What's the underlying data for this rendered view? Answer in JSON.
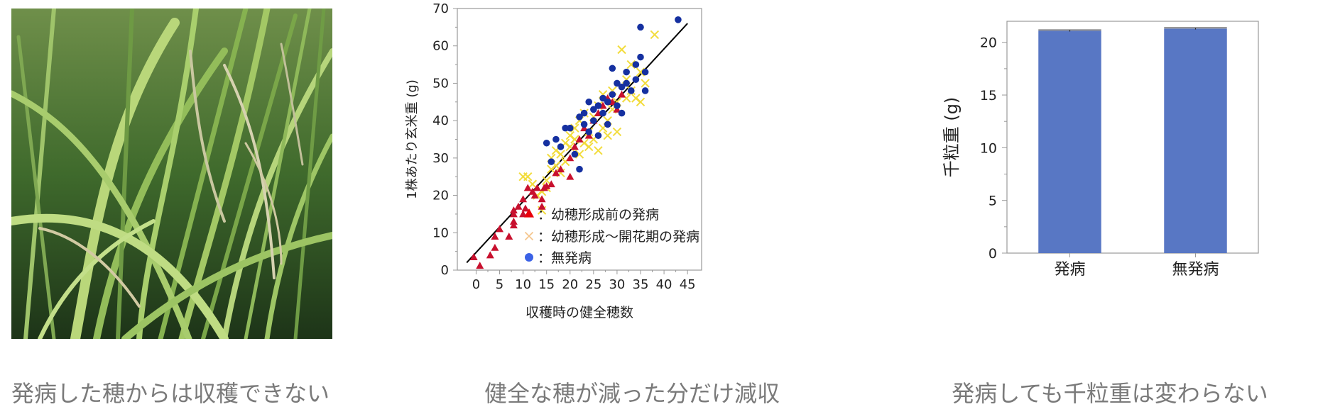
{
  "captions": {
    "photo": "発病した穂からは収穫できない",
    "scatter": "健全な穂が減った分だけ減収",
    "bar": "発病しても千粒重は変わらない"
  },
  "colors": {
    "triangle": "#c8102e",
    "cross": "#f2dc3c",
    "circle": "#1530a0",
    "bar": "#5877c4",
    "fit_line": "#000000"
  },
  "chart_data": [
    {
      "type": "scatter",
      "title": "",
      "xlabel": "収穫時の健全穂数",
      "ylabel": "1株あたり玄米重 (g)",
      "xlim": [
        -4,
        48
      ],
      "ylim": [
        0,
        70
      ],
      "xticks": [
        "0",
        "5",
        "10",
        "15",
        "20",
        "25",
        "30",
        "35",
        "40",
        "45"
      ],
      "yticks": [
        "0",
        "10",
        "20",
        "30",
        "40",
        "50",
        "60",
        "70"
      ],
      "grid": false,
      "legend_position": "bottom-right",
      "legend": [
        {
          "marker": "triangle",
          "label": "：幼穂形成前の発病"
        },
        {
          "marker": "cross",
          "label": "：幼穂形成〜開花期の発病"
        },
        {
          "marker": "circle",
          "label": "：無発病"
        }
      ],
      "fit_line": {
        "x": [
          -2,
          45
        ],
        "y": [
          2,
          66
        ]
      },
      "series": [
        {
          "marker": "triangle",
          "points": [
            [
              -0.5,
              3.5
            ],
            [
              0.8,
              1.2
            ],
            [
              3,
              4
            ],
            [
              4,
              6
            ],
            [
              4,
              9
            ],
            [
              5,
              11
            ],
            [
              7,
              9
            ],
            [
              8,
              12
            ],
            [
              8,
              13
            ],
            [
              8,
              15
            ],
            [
              8,
              16
            ],
            [
              9,
              17
            ],
            [
              10,
              15
            ],
            [
              10,
              19
            ],
            [
              10.5,
              16.5
            ],
            [
              11,
              22
            ],
            [
              12,
              21
            ],
            [
              12.5,
              20
            ],
            [
              13,
              22
            ],
            [
              14,
              17
            ],
            [
              14,
              19
            ],
            [
              14.5,
              22
            ],
            [
              15,
              22.5
            ],
            [
              16,
              23
            ],
            [
              17,
              26
            ],
            [
              18,
              27
            ],
            [
              20,
              25
            ],
            [
              20,
              30
            ],
            [
              21,
              33
            ],
            [
              22,
              35
            ],
            [
              23,
              38
            ],
            [
              24,
              36
            ],
            [
              25,
              40
            ],
            [
              26,
              42
            ],
            [
              27,
              44
            ],
            [
              28,
              46
            ],
            [
              29,
              45
            ],
            [
              30,
              43
            ],
            [
              31,
              47
            ]
          ]
        },
        {
          "marker": "cross",
          "points": [
            [
              10,
              25
            ],
            [
              11,
              25
            ],
            [
              12,
              23
            ],
            [
              13,
              20
            ],
            [
              14,
              21
            ],
            [
              14,
              16
            ],
            [
              15,
              24
            ],
            [
              15,
              22
            ],
            [
              16,
              27
            ],
            [
              16,
              30
            ],
            [
              17,
              28
            ],
            [
              17,
              32
            ],
            [
              18,
              26
            ],
            [
              18,
              31
            ],
            [
              19,
              29
            ],
            [
              19,
              34
            ],
            [
              20,
              33
            ],
            [
              20,
              36
            ],
            [
              21,
              35
            ],
            [
              21,
              38
            ],
            [
              22,
              31
            ],
            [
              22,
              40
            ],
            [
              23,
              34
            ],
            [
              23,
              42
            ],
            [
              24,
              33
            ],
            [
              24,
              37
            ],
            [
              25,
              41
            ],
            [
              25,
              35
            ],
            [
              26,
              32
            ],
            [
              26,
              44
            ],
            [
              27,
              38
            ],
            [
              27,
              47
            ],
            [
              28,
              40
            ],
            [
              28,
              36
            ],
            [
              29,
              43
            ],
            [
              29,
              48
            ],
            [
              30,
              37
            ],
            [
              30,
              45
            ],
            [
              31,
              59
            ],
            [
              32,
              46
            ],
            [
              32,
              51
            ],
            [
              33,
              48
            ],
            [
              33,
              55
            ],
            [
              34,
              46
            ],
            [
              35,
              45
            ],
            [
              35,
              53
            ],
            [
              36,
              50
            ],
            [
              38,
              63
            ]
          ]
        },
        {
          "marker": "circle",
          "points": [
            [
              15,
              34
            ],
            [
              16,
              29
            ],
            [
              17,
              35
            ],
            [
              18,
              33
            ],
            [
              19,
              38
            ],
            [
              20,
              38
            ],
            [
              21,
              31
            ],
            [
              22,
              27
            ],
            [
              22,
              41
            ],
            [
              23,
              42
            ],
            [
              23,
              39
            ],
            [
              24,
              45
            ],
            [
              24,
              37
            ],
            [
              25,
              43
            ],
            [
              25,
              40
            ],
            [
              26,
              44
            ],
            [
              26,
              36
            ],
            [
              27,
              46
            ],
            [
              27,
              42
            ],
            [
              28,
              45
            ],
            [
              28,
              39
            ],
            [
              29,
              47
            ],
            [
              29,
              54
            ],
            [
              30,
              50
            ],
            [
              30,
              44
            ],
            [
              31,
              49
            ],
            [
              31,
              42
            ],
            [
              32,
              53
            ],
            [
              32,
              50
            ],
            [
              33,
              48
            ],
            [
              34,
              55
            ],
            [
              34,
              51
            ],
            [
              35,
              57
            ],
            [
              35,
              65
            ],
            [
              36,
              53
            ],
            [
              36,
              48
            ],
            [
              43,
              67
            ]
          ]
        }
      ]
    },
    {
      "type": "bar",
      "title": "",
      "xlabel": "",
      "ylabel": "千粒重 (g)",
      "categories": [
        "発病",
        "無発病"
      ],
      "values": [
        21.1,
        21.3
      ],
      "errors": [
        0.08,
        0.08
      ],
      "ylim": [
        0,
        22
      ],
      "yticks": [
        "0",
        "5",
        "10",
        "15",
        "20"
      ],
      "grid": false
    }
  ]
}
